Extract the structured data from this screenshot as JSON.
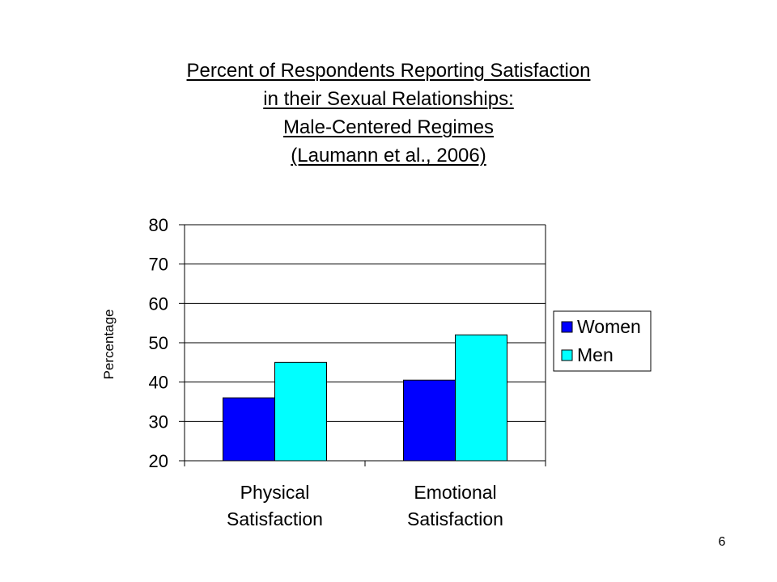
{
  "page_number": "6",
  "chart_data": {
    "type": "bar",
    "title_lines": [
      "Percent of Respondents Reporting Satisfaction",
      "in their Sexual Relationships:",
      "Male-Centered Regimes",
      "(Laumann et al., 2006)"
    ],
    "xlabel": "",
    "ylabel": "Percentage",
    "ylim": [
      20,
      80
    ],
    "yticks": [
      20,
      30,
      40,
      50,
      60,
      70,
      80
    ],
    "grid": true,
    "legend_position": "right",
    "categories": [
      [
        "Physical",
        "Satisfaction"
      ],
      [
        "Emotional",
        "Satisfaction"
      ]
    ],
    "series": [
      {
        "name": "Women",
        "color": "#0000ff",
        "values": [
          36,
          40.5
        ]
      },
      {
        "name": "Men",
        "color": "#00ffff",
        "values": [
          45,
          52
        ]
      }
    ]
  }
}
